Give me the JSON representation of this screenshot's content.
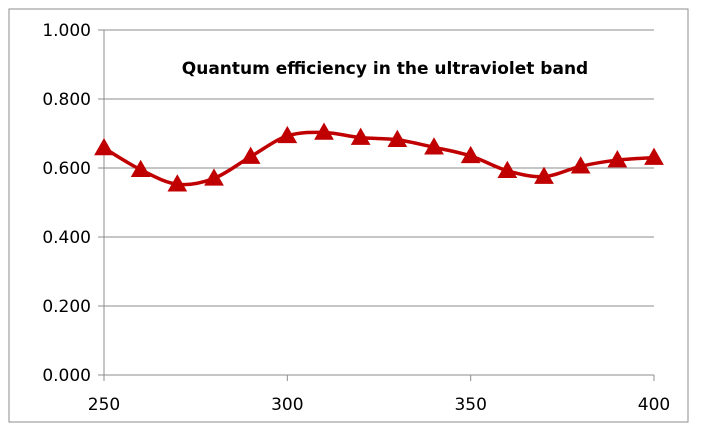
{
  "chart_data": {
    "type": "line",
    "title": "Quantum efficiency in the ultraviolet band",
    "xlabel": "",
    "ylabel": "",
    "x": [
      250,
      260,
      270,
      280,
      290,
      300,
      310,
      320,
      330,
      340,
      350,
      360,
      370,
      380,
      390,
      400
    ],
    "series": [
      {
        "name": "",
        "values": [
          0.658,
          0.595,
          0.553,
          0.57,
          0.633,
          0.693,
          0.703,
          0.688,
          0.682,
          0.66,
          0.635,
          0.592,
          0.575,
          0.605,
          0.623,
          0.63
        ],
        "color": "#C00000",
        "marker": "triangle",
        "smooth": true
      }
    ],
    "xlim": [
      250,
      400
    ],
    "ylim": [
      0,
      1
    ],
    "x_ticks": [
      "250",
      "300",
      "350",
      "400"
    ],
    "y_ticks": [
      "0.000",
      "0.200",
      "0.400",
      "0.600",
      "0.800",
      "1.000"
    ],
    "grid": "horizontal",
    "legend": "none"
  }
}
